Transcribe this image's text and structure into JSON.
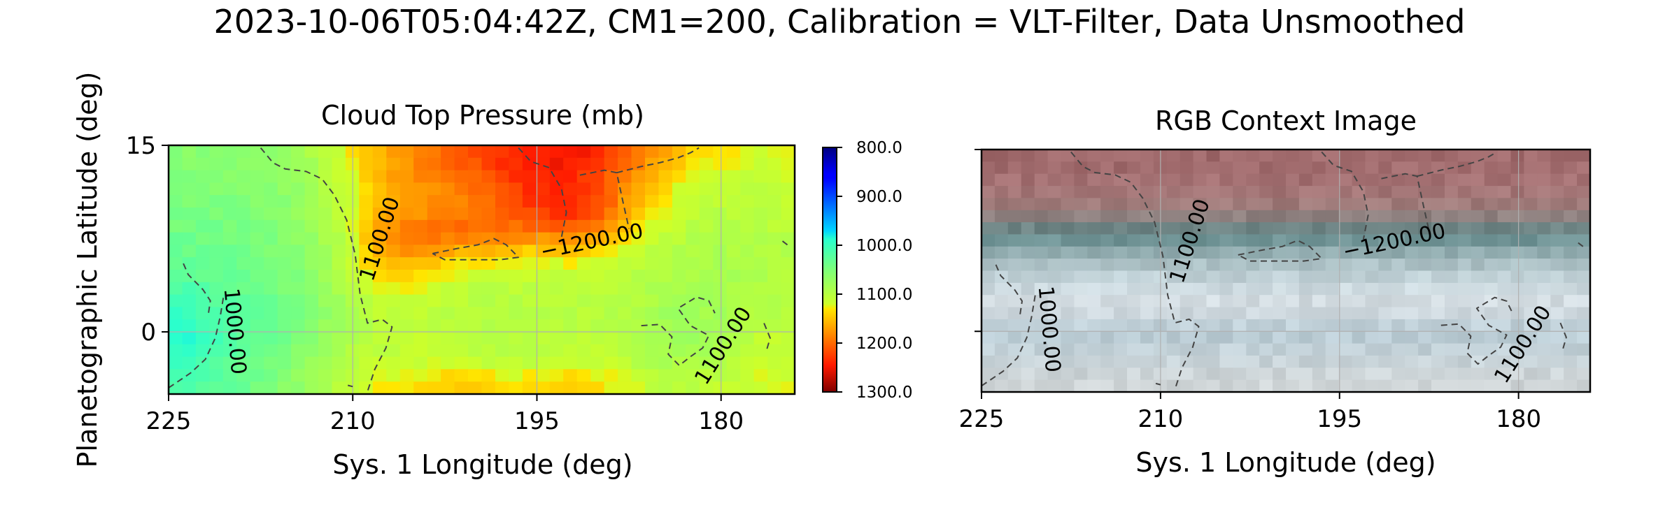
{
  "figure": {
    "suptitle": "2023-10-06T05:04:42Z, CM1=200, Calibration = VLT-Filter, Data Unsmoothed"
  },
  "chart_data": [
    {
      "type": "heatmap",
      "title": "Cloud Top Pressure (mb)",
      "xlabel": "Sys. 1 Longitude (deg)",
      "ylabel": "Planetographic Latitude (deg)",
      "xlim": [
        225,
        174
      ],
      "ylim": [
        -5,
        15
      ],
      "xticks": [
        "225",
        "210",
        "195",
        "180"
      ],
      "xtick_values": [
        225,
        210,
        195,
        180
      ],
      "yticks": [
        "15",
        "0"
      ],
      "ytick_values": [
        15,
        0
      ],
      "grid": true,
      "colormap": "jet_r",
      "colorbar": {
        "range": [
          800,
          1300
        ],
        "ticks": [
          "800.0",
          "900.0",
          "1000.0",
          "1100.0",
          "1200.0",
          "1300.0"
        ],
        "tick_values": [
          800,
          900,
          1000,
          1100,
          1200,
          1300
        ],
        "position": "right"
      },
      "grid_rows": [
        {
          "lat": 14,
          "pressure": [
            1060,
            1060,
            1060,
            1062,
            1068,
            1080,
            1100,
            1125,
            1150,
            1170,
            1185,
            1200,
            1215,
            1230,
            1240,
            1248,
            1250,
            1240,
            1220,
            1195,
            1165,
            1140,
            1130,
            1125,
            1120,
            1120
          ]
        },
        {
          "lat": 12,
          "pressure": [
            1055,
            1055,
            1055,
            1058,
            1064,
            1075,
            1095,
            1120,
            1150,
            1168,
            1180,
            1190,
            1200,
            1215,
            1230,
            1240,
            1238,
            1225,
            1200,
            1170,
            1140,
            1120,
            1115,
            1110,
            1110,
            1112
          ]
        },
        {
          "lat": 10,
          "pressure": [
            1050,
            1050,
            1050,
            1052,
            1058,
            1070,
            1090,
            1115,
            1150,
            1170,
            1175,
            1175,
            1180,
            1195,
            1215,
            1235,
            1240,
            1225,
            1190,
            1150,
            1125,
            1110,
            1105,
            1105,
            1105,
            1108
          ]
        },
        {
          "lat": 8,
          "pressure": [
            1040,
            1042,
            1045,
            1048,
            1055,
            1065,
            1085,
            1110,
            1160,
            1185,
            1195,
            1200,
            1205,
            1205,
            1195,
            1190,
            1200,
            1190,
            1160,
            1130,
            1110,
            1100,
            1095,
            1095,
            1098,
            1100
          ]
        },
        {
          "lat": 6,
          "pressure": [
            1030,
            1035,
            1040,
            1045,
            1050,
            1060,
            1080,
            1110,
            1150,
            1170,
            1165,
            1150,
            1140,
            1135,
            1130,
            1130,
            1130,
            1125,
            1115,
            1105,
            1100,
            1095,
            1090,
            1090,
            1092,
            1095
          ]
        },
        {
          "lat": 4,
          "pressure": [
            1020,
            1025,
            1030,
            1035,
            1045,
            1055,
            1075,
            1100,
            1120,
            1130,
            1125,
            1115,
            1110,
            1105,
            1105,
            1105,
            1105,
            1105,
            1100,
            1095,
            1090,
            1085,
            1085,
            1088,
            1090,
            1095
          ]
        },
        {
          "lat": 2,
          "pressure": [
            1000,
            1010,
            1020,
            1030,
            1040,
            1050,
            1070,
            1090,
            1105,
            1110,
            1110,
            1105,
            1100,
            1100,
            1100,
            1100,
            1102,
            1102,
            1100,
            1095,
            1085,
            1080,
            1082,
            1088,
            1095,
            1100
          ]
        },
        {
          "lat": 0,
          "pressure": [
            985,
            1000,
            1015,
            1028,
            1040,
            1052,
            1070,
            1090,
            1100,
            1105,
            1108,
            1105,
            1100,
            1098,
            1098,
            1100,
            1102,
            1105,
            1100,
            1090,
            1080,
            1078,
            1085,
            1095,
            1105,
            1110
          ]
        },
        {
          "lat": -2,
          "pressure": [
            990,
            1005,
            1020,
            1032,
            1045,
            1060,
            1080,
            1095,
            1105,
            1110,
            1112,
            1110,
            1105,
            1102,
            1102,
            1105,
            1108,
            1110,
            1105,
            1095,
            1088,
            1085,
            1090,
            1100,
            1110,
            1115
          ]
        },
        {
          "lat": -4,
          "pressure": [
            1010,
            1020,
            1030,
            1040,
            1055,
            1070,
            1090,
            1105,
            1120,
            1130,
            1135,
            1140,
            1140,
            1135,
            1130,
            1135,
            1140,
            1135,
            1125,
            1115,
            1105,
            1100,
            1105,
            1115,
            1120,
            1120
          ]
        }
      ],
      "contours": [
        {
          "level": 1000,
          "label": "1000.00"
        },
        {
          "level": 1100,
          "label": "1100.00"
        },
        {
          "level": 1200,
          "label": "−1200.00"
        }
      ]
    },
    {
      "type": "heatmap",
      "title": "RGB Context Image",
      "xlabel": "Sys. 1 Longitude (deg)",
      "xlim": [
        225,
        174
      ],
      "ylim": [
        -5,
        15
      ],
      "xticks": [
        "225",
        "210",
        "195",
        "180"
      ],
      "xtick_values": [
        225,
        210,
        195,
        180
      ],
      "grid": true,
      "bands": [
        {
          "lat": 14,
          "color": "#a06a6c"
        },
        {
          "lat": 12,
          "color": "#a57274"
        },
        {
          "lat": 10,
          "color": "#9e7e7c"
        },
        {
          "lat": 8,
          "color": "#5f8788"
        },
        {
          "lat": 6,
          "color": "#a3b9bd"
        },
        {
          "lat": 4,
          "color": "#c9d8de"
        },
        {
          "lat": 2,
          "color": "#d6dde2"
        },
        {
          "lat": 0,
          "color": "#b8cbd4"
        },
        {
          "lat": -2,
          "color": "#c5d2d8"
        },
        {
          "lat": -4,
          "color": "#cfd5d7"
        }
      ],
      "contours": [
        {
          "level": 1000,
          "label": "1000.00"
        },
        {
          "level": 1100,
          "label": "1100.00"
        },
        {
          "level": 1200,
          "label": "−1200.00"
        }
      ]
    }
  ]
}
